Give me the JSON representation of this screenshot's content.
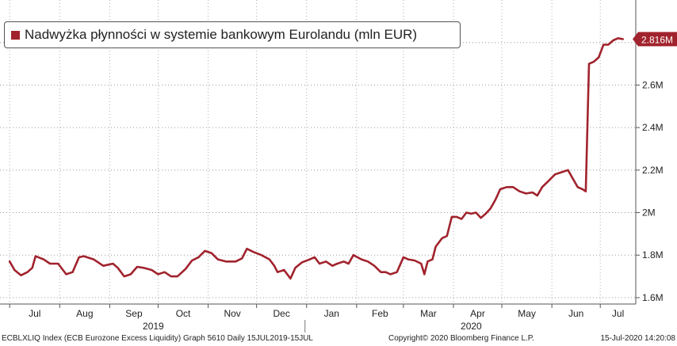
{
  "chart_data": {
    "type": "line",
    "title": "",
    "series": [
      {
        "name": "Nadwyżka płynności w systemie bankowym Eurolandu (mln EUR)",
        "color": "#a1232d",
        "points": [
          [
            "2019-07-01",
            1.77
          ],
          [
            "2019-07-04",
            1.73
          ],
          [
            "2019-07-08",
            1.705
          ],
          [
            "2019-07-12",
            1.72
          ],
          [
            "2019-07-15",
            1.74
          ],
          [
            "2019-07-17",
            1.795
          ],
          [
            "2019-07-22",
            1.78
          ],
          [
            "2019-07-26",
            1.76
          ],
          [
            "2019-07-31",
            1.76
          ],
          [
            "2019-08-05",
            1.71
          ],
          [
            "2019-08-09",
            1.72
          ],
          [
            "2019-08-13",
            1.79
          ],
          [
            "2019-08-16",
            1.795
          ],
          [
            "2019-08-22",
            1.78
          ],
          [
            "2019-08-28",
            1.75
          ],
          [
            "2019-09-03",
            1.76
          ],
          [
            "2019-09-06",
            1.74
          ],
          [
            "2019-09-10",
            1.7
          ],
          [
            "2019-09-14",
            1.71
          ],
          [
            "2019-09-18",
            1.745
          ],
          [
            "2019-09-22",
            1.74
          ],
          [
            "2019-09-27",
            1.73
          ],
          [
            "2019-10-01",
            1.71
          ],
          [
            "2019-10-05",
            1.72
          ],
          [
            "2019-10-09",
            1.7
          ],
          [
            "2019-10-13",
            1.7
          ],
          [
            "2019-10-18",
            1.735
          ],
          [
            "2019-10-22",
            1.775
          ],
          [
            "2019-10-26",
            1.79
          ],
          [
            "2019-10-30",
            1.82
          ],
          [
            "2019-11-03",
            1.81
          ],
          [
            "2019-11-07",
            1.78
          ],
          [
            "2019-11-12",
            1.77
          ],
          [
            "2019-11-18",
            1.77
          ],
          [
            "2019-11-22",
            1.785
          ],
          [
            "2019-11-25",
            1.83
          ],
          [
            "2019-11-29",
            1.815
          ],
          [
            "2019-12-04",
            1.8
          ],
          [
            "2019-12-09",
            1.78
          ],
          [
            "2019-12-12",
            1.75
          ],
          [
            "2019-12-14",
            1.72
          ],
          [
            "2019-12-18",
            1.73
          ],
          [
            "2019-12-22",
            1.69
          ],
          [
            "2019-12-25",
            1.74
          ],
          [
            "2019-12-29",
            1.765
          ],
          [
            "2020-01-03",
            1.78
          ],
          [
            "2020-01-06",
            1.79
          ],
          [
            "2020-01-09",
            1.76
          ],
          [
            "2020-01-13",
            1.77
          ],
          [
            "2020-01-17",
            1.75
          ],
          [
            "2020-01-20",
            1.76
          ],
          [
            "2020-01-24",
            1.77
          ],
          [
            "2020-01-27",
            1.76
          ],
          [
            "2020-01-30",
            1.8
          ],
          [
            "2020-02-04",
            1.78
          ],
          [
            "2020-02-08",
            1.77
          ],
          [
            "2020-02-12",
            1.75
          ],
          [
            "2020-02-16",
            1.72
          ],
          [
            "2020-02-19",
            1.72
          ],
          [
            "2020-02-22",
            1.71
          ],
          [
            "2020-02-26",
            1.72
          ],
          [
            "2020-03-01",
            1.79
          ],
          [
            "2020-03-04",
            1.78
          ],
          [
            "2020-03-08",
            1.775
          ],
          [
            "2020-03-12",
            1.76
          ],
          [
            "2020-03-14",
            1.71
          ],
          [
            "2020-03-16",
            1.77
          ],
          [
            "2020-03-19",
            1.78
          ],
          [
            "2020-03-21",
            1.84
          ],
          [
            "2020-03-25",
            1.88
          ],
          [
            "2020-03-28",
            1.89
          ],
          [
            "2020-03-31",
            1.98
          ],
          [
            "2020-04-03",
            1.98
          ],
          [
            "2020-04-06",
            1.97
          ],
          [
            "2020-04-09",
            2.0
          ],
          [
            "2020-04-12",
            1.995
          ],
          [
            "2020-04-15",
            2.0
          ],
          [
            "2020-04-18",
            1.975
          ],
          [
            "2020-04-21",
            1.995
          ],
          [
            "2020-04-24",
            2.02
          ],
          [
            "2020-04-27",
            2.06
          ],
          [
            "2020-04-30",
            2.11
          ],
          [
            "2020-05-04",
            2.12
          ],
          [
            "2020-05-08",
            2.12
          ],
          [
            "2020-05-12",
            2.1
          ],
          [
            "2020-05-16",
            2.09
          ],
          [
            "2020-05-20",
            2.095
          ],
          [
            "2020-05-23",
            2.08
          ],
          [
            "2020-05-26",
            2.12
          ],
          [
            "2020-05-30",
            2.15
          ],
          [
            "2020-06-03",
            2.18
          ],
          [
            "2020-06-07",
            2.19
          ],
          [
            "2020-06-11",
            2.2
          ],
          [
            "2020-06-14",
            2.16
          ],
          [
            "2020-06-17",
            2.12
          ],
          [
            "2020-06-20",
            2.11
          ],
          [
            "2020-06-22",
            2.1
          ],
          [
            "2020-06-24",
            2.7
          ],
          [
            "2020-06-27",
            2.71
          ],
          [
            "2020-06-30",
            2.73
          ],
          [
            "2020-07-03",
            2.79
          ],
          [
            "2020-07-06",
            2.79
          ],
          [
            "2020-07-09",
            2.81
          ],
          [
            "2020-07-12",
            2.82
          ],
          [
            "2020-07-15",
            2.816
          ]
        ]
      }
    ],
    "x_range": [
      "2019-06-25",
      "2020-07-23"
    ],
    "ylim": [
      1.57,
      3.0
    ],
    "y_ticks": [
      {
        "value": 1.6,
        "label": "1.6M"
      },
      {
        "value": 1.8,
        "label": "1.8M"
      },
      {
        "value": 2.0,
        "label": "2M"
      },
      {
        "value": 2.2,
        "label": "2.2M"
      },
      {
        "value": 2.4,
        "label": "2.4M"
      },
      {
        "value": 2.6,
        "label": "2.6M"
      },
      {
        "value": 2.8,
        "label": "2.8M"
      }
    ],
    "x_ticks": [
      {
        "date": "2019-07-01",
        "label": "Jul"
      },
      {
        "date": "2019-08-01",
        "label": "Aug"
      },
      {
        "date": "2019-09-01",
        "label": "Sep"
      },
      {
        "date": "2019-10-01",
        "label": "Oct"
      },
      {
        "date": "2019-11-01",
        "label": "Nov"
      },
      {
        "date": "2019-12-01",
        "label": "Dec"
      },
      {
        "date": "2020-01-01",
        "label": "Jan"
      },
      {
        "date": "2020-02-01",
        "label": "Feb"
      },
      {
        "date": "2020-03-01",
        "label": "Mar"
      },
      {
        "date": "2020-04-01",
        "label": "Apr"
      },
      {
        "date": "2020-05-01",
        "label": "May"
      },
      {
        "date": "2020-06-01",
        "label": "Jun"
      },
      {
        "date": "2020-07-01",
        "label": "Jul"
      }
    ],
    "year_labels": [
      {
        "label": "2019"
      },
      {
        "label": "2020"
      }
    ],
    "year_divider_date": "2020-01-01",
    "last_value": {
      "value": 2.816,
      "label": "2.816M"
    },
    "grid": "horizontal-dotted",
    "legend_placement": "top-left"
  },
  "footer": {
    "left": "ECBLXLIQ Index (ECB Eurozone Excess Liquidity) Graph 5610  Daily 15JUL2019-15JUL",
    "center": "Copyright© 2020 Bloomberg Finance L.P.",
    "right": "15-Jul-2020 14:20:08"
  }
}
